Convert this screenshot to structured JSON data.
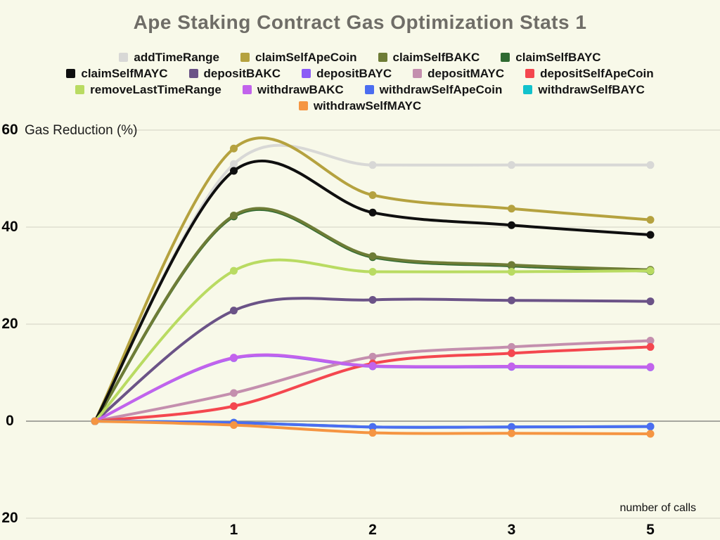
{
  "title": {
    "text": "Ape Staking Contract Gas Optimization Stats 1",
    "color": "#6f6d67"
  },
  "y_axis": {
    "title": "Gas Reduction (%)",
    "tick_labels": [
      "60",
      "40",
      "20",
      "0",
      "20"
    ],
    "tick_values": [
      60,
      40,
      20,
      0,
      -20
    ]
  },
  "x_axis": {
    "title": "number of calls",
    "tick_labels": [
      "1",
      "2",
      "3",
      "5"
    ],
    "tick_slots": [
      1,
      2,
      3,
      4
    ]
  },
  "colors": {
    "background": "#f8f9e9",
    "grid": "#d9d9cc",
    "zero_line": "#8b8b86"
  },
  "chart_data": {
    "type": "line",
    "title": "Ape Staking Contract Gas Optimization Stats 1",
    "xlabel": "number of calls",
    "ylabel": "Gas Reduction (%)",
    "x_slot_labels": [
      "",
      "1",
      "2",
      "3",
      "5"
    ],
    "ylim": [
      -20,
      60
    ],
    "grid": "horizontal",
    "legend_position": "top",
    "point_markers": true,
    "legend_rows": [
      [
        "addTimeRange",
        "claimSelfApeCoin",
        "claimSelfBAKC",
        "claimSelfBAYC"
      ],
      [
        "claimSelfMAYC",
        "depositBAKC",
        "depositBAYC",
        "depositMAYC",
        "depositSelfApeCoin"
      ],
      [
        "removeLastTimeRange",
        "withdrawBAKC",
        "withdrawSelfApeCoin",
        "withdrawSelfBAYC"
      ],
      [
        "withdrawSelfMAYC"
      ]
    ],
    "series": [
      {
        "name": "addTimeRange",
        "color": "#d8d8d6",
        "values": [
          0,
          53.0,
          52.8,
          52.8,
          52.8
        ]
      },
      {
        "name": "claimSelfBAYC",
        "color": "#2f6a31",
        "values": [
          0,
          42.2,
          33.8,
          32.0,
          30.9
        ]
      },
      {
        "name": "claimSelfApeCoin",
        "color": "#b5a23f",
        "values": [
          0,
          56.2,
          46.6,
          43.8,
          41.5
        ]
      },
      {
        "name": "claimSelfBAKC",
        "color": "#6e7c36",
        "values": [
          0,
          42.4,
          34.0,
          32.2,
          31.2
        ]
      },
      {
        "name": "claimSelfMAYC",
        "color": "#0f0f0f",
        "values": [
          0,
          51.6,
          43.0,
          40.4,
          38.4
        ]
      },
      {
        "name": "depositBAYC",
        "color": "#8b5cf6",
        "values": [
          0,
          13.0,
          11.3,
          11.2,
          11.1
        ]
      },
      {
        "name": "depositBAKC",
        "color": "#6b5387",
        "values": [
          0,
          22.8,
          25.0,
          24.9,
          24.7
        ]
      },
      {
        "name": "depositMAYC",
        "color": "#c48fae",
        "values": [
          0,
          5.8,
          13.3,
          15.3,
          16.6
        ]
      },
      {
        "name": "depositSelfApeCoin",
        "color": "#f4474f",
        "values": [
          0,
          3.1,
          11.9,
          14.0,
          15.3
        ]
      },
      {
        "name": "removeLastTimeRange",
        "color": "#b9db62",
        "values": [
          0,
          31.0,
          30.8,
          30.8,
          31.0
        ]
      },
      {
        "name": "withdrawBAKC",
        "color": "#c263ec",
        "values": [
          0,
          13.1,
          11.4,
          11.3,
          11.2
        ]
      },
      {
        "name": "withdrawSelfBAYC",
        "color": "#12c2cc",
        "values": [
          0,
          -0.3,
          -1.2,
          -1.2,
          -1.1
        ]
      },
      {
        "name": "withdrawSelfApeCoin",
        "color": "#4b6df0",
        "values": [
          0,
          -0.3,
          -1.2,
          -1.2,
          -1.1
        ]
      },
      {
        "name": "withdrawSelfMAYC",
        "color": "#f59542",
        "values": [
          0,
          -0.8,
          -2.4,
          -2.5,
          -2.6
        ]
      }
    ]
  }
}
